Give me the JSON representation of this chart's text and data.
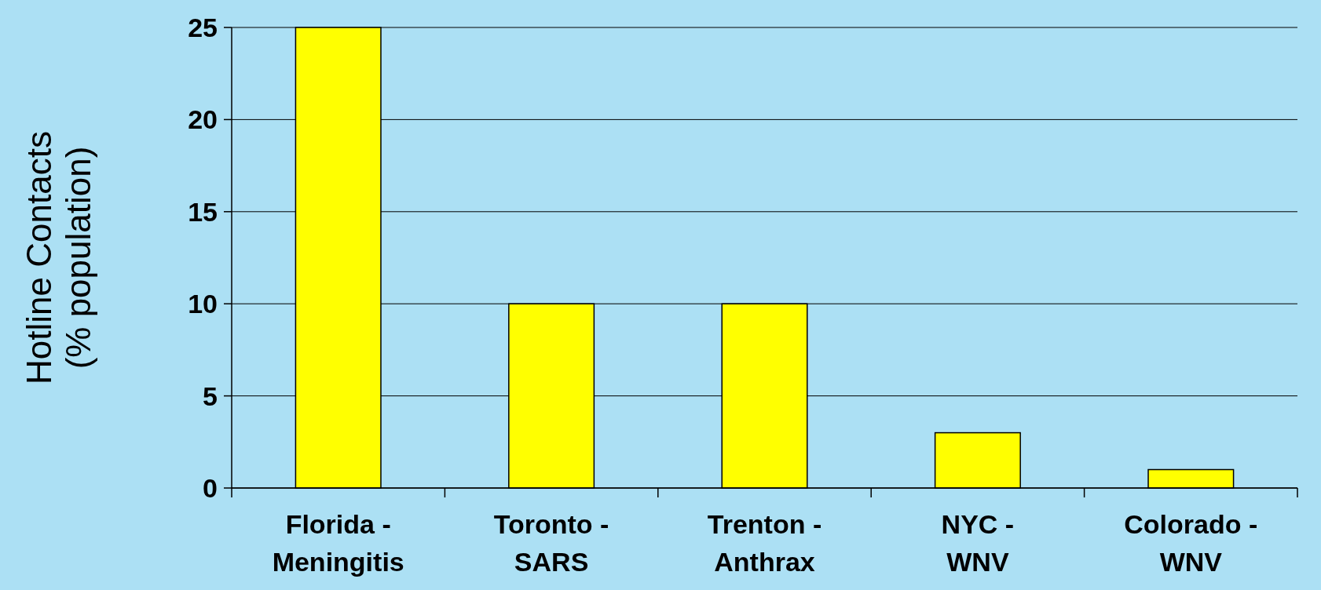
{
  "chart_data": {
    "type": "bar",
    "ylabel": "Hotline Contacts\n(% population)",
    "categories": [
      "Florida - Meningitis",
      "Toronto - SARS",
      "Trenton - Anthrax",
      "NYC - WNV",
      "Colorado - WNV"
    ],
    "values": [
      25,
      10,
      10,
      3,
      1
    ],
    "color": "#ffff00",
    "ylim": [
      0,
      25
    ],
    "yticks": [
      0,
      5,
      10,
      15,
      20,
      25
    ],
    "grid": "y"
  }
}
